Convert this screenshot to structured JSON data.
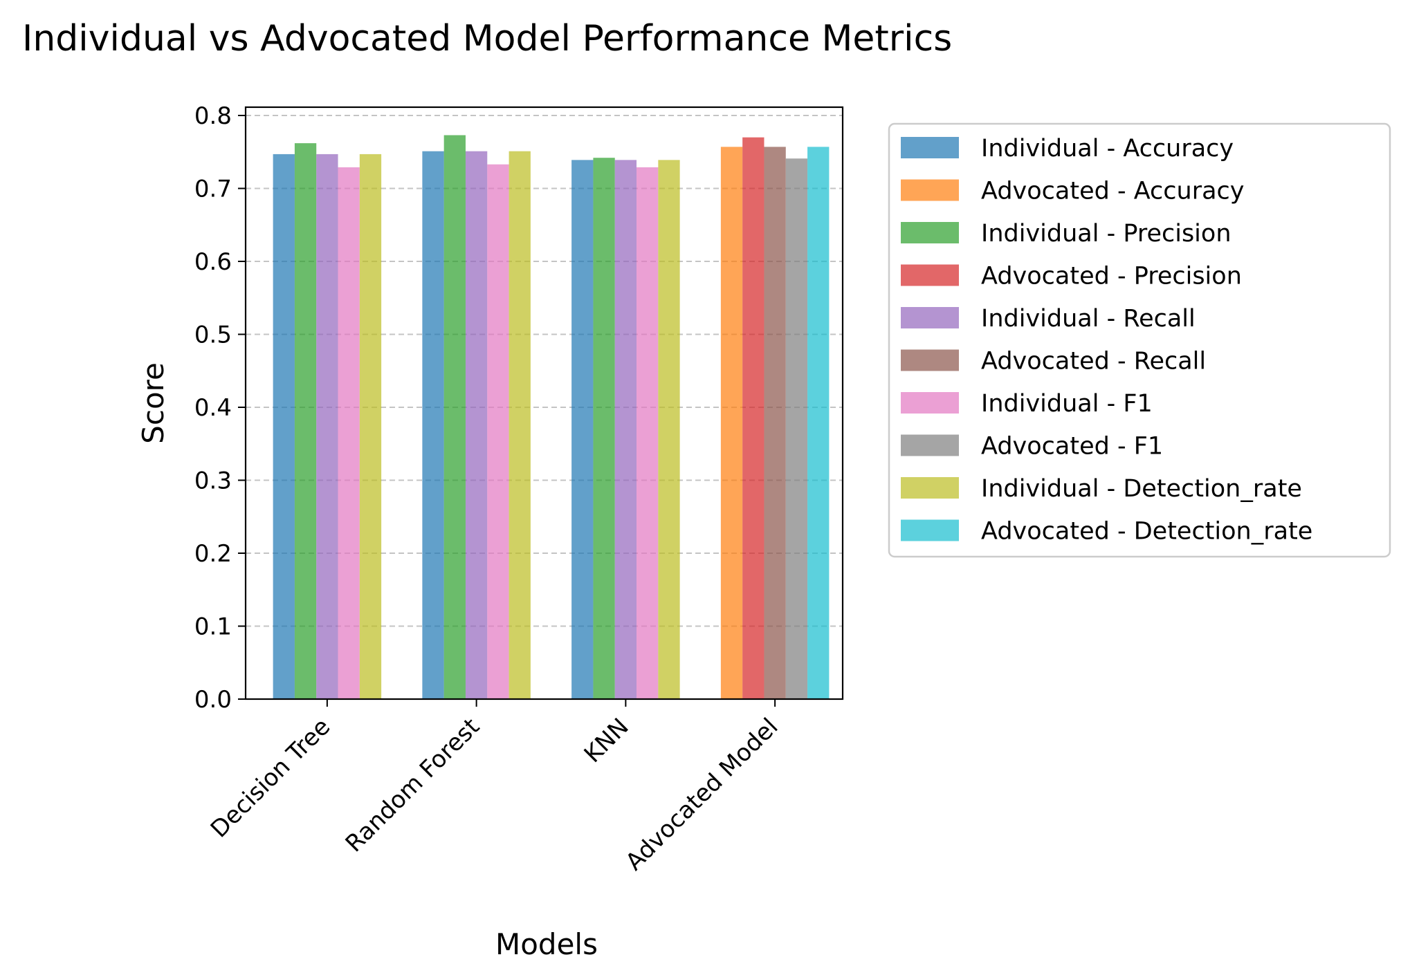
{
  "chart_data": {
    "type": "bar",
    "title": "Individual vs Advocated Model Performance Metrics",
    "xlabel": "Models",
    "ylabel": "Score",
    "ylim": [
      0,
      0.8
    ],
    "yticks": [
      "0.0",
      "0.1",
      "0.2",
      "0.3",
      "0.4",
      "0.5",
      "0.6",
      "0.7",
      "0.8"
    ],
    "categories": [
      "Decision Tree",
      "Random Forest",
      "KNN",
      "Advocated Model"
    ],
    "grid": "y-dashed",
    "legend_placement": "outside-right",
    "series": [
      {
        "name": "Individual - Accuracy",
        "color": "#1f77b4",
        "values": [
          0.747,
          0.751,
          0.739,
          null
        ]
      },
      {
        "name": "Advocated - Accuracy",
        "color": "#ff7f0e",
        "values": [
          null,
          null,
          null,
          0.757
        ]
      },
      {
        "name": "Individual - Precision",
        "color": "#2ca02c",
        "values": [
          0.762,
          0.773,
          0.742,
          null
        ]
      },
      {
        "name": "Advocated - Precision",
        "color": "#d62728",
        "values": [
          null,
          null,
          null,
          0.77
        ]
      },
      {
        "name": "Individual - Recall",
        "color": "#9467bd",
        "values": [
          0.747,
          0.751,
          0.739,
          null
        ]
      },
      {
        "name": "Advocated - Recall",
        "color": "#8c564b",
        "values": [
          null,
          null,
          null,
          0.757
        ]
      },
      {
        "name": "Individual - F1",
        "color": "#e377c2",
        "values": [
          0.729,
          0.733,
          0.729,
          null
        ]
      },
      {
        "name": "Advocated - F1",
        "color": "#7f7f7f",
        "values": [
          null,
          null,
          null,
          0.741
        ]
      },
      {
        "name": "Individual - Detection_rate",
        "color": "#bcbd22",
        "values": [
          0.747,
          0.751,
          0.739,
          null
        ]
      },
      {
        "name": "Advocated - Detection_rate",
        "color": "#17becf",
        "values": [
          null,
          null,
          null,
          0.757
        ]
      }
    ]
  }
}
